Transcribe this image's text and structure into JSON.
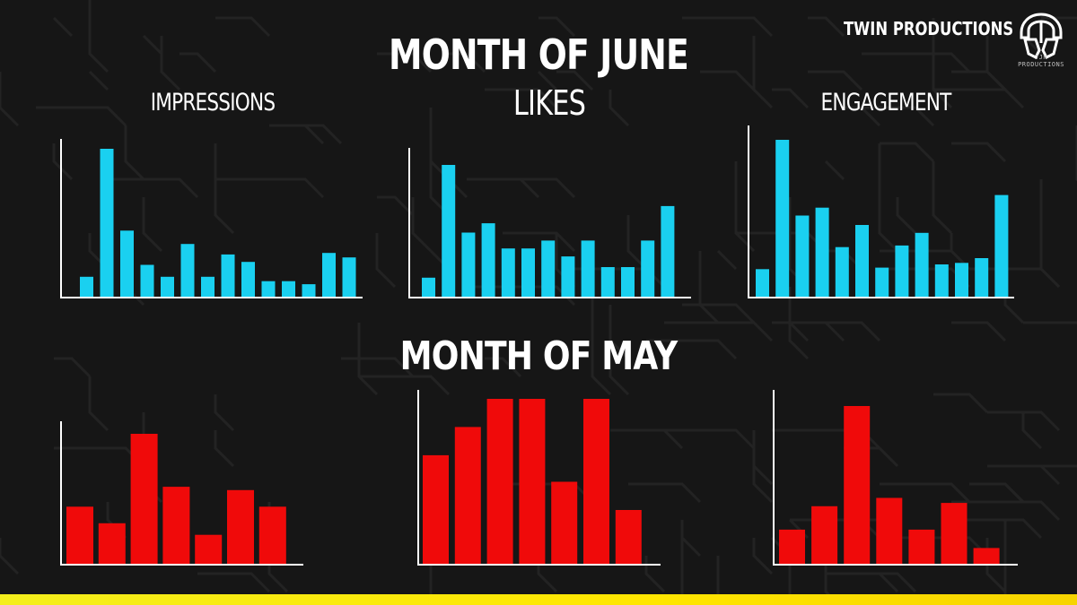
{
  "header": {
    "june_title": "MONTH OF JUNE",
    "may_title": "MONTH OF MAY"
  },
  "brand": {
    "name": "TWIN PRODUCTIONS",
    "logo_caption": "JJN PRODUCTIONS",
    "logo_icon": "helmet-logo-icon"
  },
  "labels": {
    "impressions": "IMPRESSIONS",
    "likes": "LIKES",
    "engagement": "ENGAGEMENT"
  },
  "colors": {
    "june_bar": "#1ad0f0",
    "may_bar": "#f00a0a",
    "axis": "#ffffff",
    "background": "#161616",
    "accent_bar": "#f4ee1c"
  },
  "chart_data": [
    {
      "type": "bar",
      "title": "IMPRESSIONS",
      "group": "MONTH OF JUNE",
      "values": [
        14,
        100,
        45,
        22,
        14,
        36,
        14,
        29,
        24,
        11,
        11,
        9,
        30,
        27
      ],
      "ylim": [
        0,
        100
      ]
    },
    {
      "type": "bar",
      "title": "LIKES",
      "group": "MONTH OF JUNE",
      "values": [
        15,
        100,
        49,
        56,
        37,
        37,
        43,
        31,
        43,
        23,
        23,
        43,
        69
      ],
      "ylim": [
        0,
        100
      ]
    },
    {
      "type": "bar",
      "title": "ENGAGEMENT",
      "group": "MONTH OF JUNE",
      "values": [
        18,
        100,
        52,
        57,
        32,
        46,
        19,
        33,
        41,
        21,
        22,
        25,
        65
      ],
      "ylim": [
        0,
        100
      ]
    },
    {
      "type": "bar",
      "title": "IMPRESSIONS",
      "group": "MONTH OF MAY",
      "values": [
        35,
        25,
        79,
        47,
        18,
        45,
        35
      ],
      "ylim": [
        0,
        100
      ]
    },
    {
      "type": "bar",
      "title": "LIKES",
      "group": "MONTH OF MAY",
      "values": [
        66,
        83,
        100,
        100,
        50,
        100,
        33
      ],
      "ylim": [
        0,
        100
      ]
    },
    {
      "type": "bar",
      "title": "ENGAGEMENT",
      "group": "MONTH OF MAY",
      "values": [
        21,
        35,
        95,
        40,
        21,
        37,
        10
      ],
      "ylim": [
        0,
        100
      ]
    }
  ]
}
